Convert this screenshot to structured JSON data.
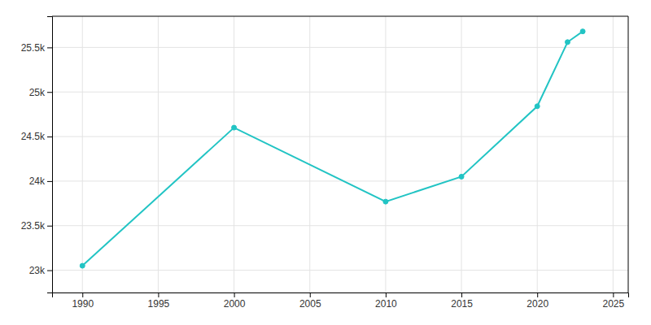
{
  "chart_data": {
    "type": "line",
    "x": [
      1990,
      2000,
      2010,
      2015,
      2020,
      2022,
      2023
    ],
    "values": [
      23050,
      24600,
      23770,
      24050,
      24840,
      25560,
      25680
    ],
    "color": "#22C4C4",
    "marker": "circle",
    "xlim": [
      1988,
      2026
    ],
    "ylim": [
      22750,
      25850
    ],
    "xticks": [
      1990,
      1995,
      2000,
      2005,
      2010,
      2015,
      2020,
      2025
    ],
    "yticks": [
      {
        "value": 23000,
        "label": "23k"
      },
      {
        "value": 23500,
        "label": "23.5k"
      },
      {
        "value": 24000,
        "label": "24k"
      },
      {
        "value": 24500,
        "label": "24.5k"
      },
      {
        "value": 25000,
        "label": "25k"
      },
      {
        "value": 25500,
        "label": "25.5k"
      }
    ],
    "grid": true
  }
}
